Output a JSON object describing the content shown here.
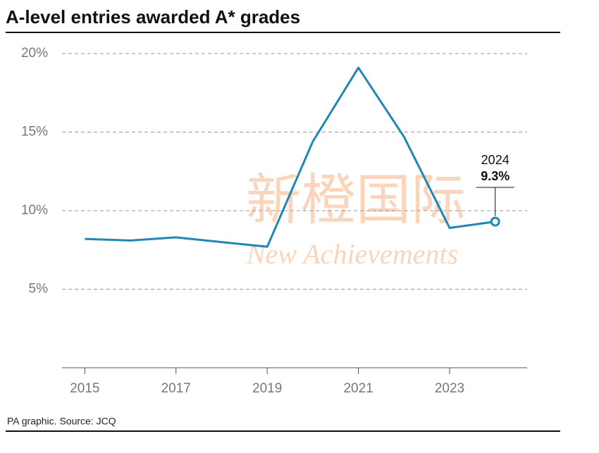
{
  "chart_data": {
    "type": "line",
    "title": "A-level entries awarded A* grades",
    "source": "PA graphic. Source: JCQ",
    "watermark": [
      "新橙国际",
      "New Achievements"
    ],
    "x": [
      2015,
      2016,
      2017,
      2018,
      2019,
      2020,
      2021,
      2022,
      2023,
      2024
    ],
    "series": [
      {
        "color": "#1f87b5",
        "values": [
          8.2,
          8.1,
          8.3,
          8.0,
          7.7,
          14.4,
          19.1,
          14.7,
          8.9,
          9.3
        ],
        "value_labels": [
          null,
          null,
          null,
          null,
          null,
          null,
          null,
          null,
          null,
          "9.3%"
        ]
      }
    ],
    "annotation_title": "2024",
    "xlim": [
      2014.5,
      2024.7
    ],
    "xticks": [
      2015,
      2017,
      2019,
      2021,
      2023
    ],
    "ylim": [
      0,
      20
    ],
    "yticks": [
      {
        "value": 5,
        "label": "5%"
      },
      {
        "value": 10,
        "label": "10%"
      },
      {
        "value": 15,
        "label": "15%"
      },
      {
        "value": 20,
        "label": "20%"
      }
    ],
    "grid": true
  }
}
